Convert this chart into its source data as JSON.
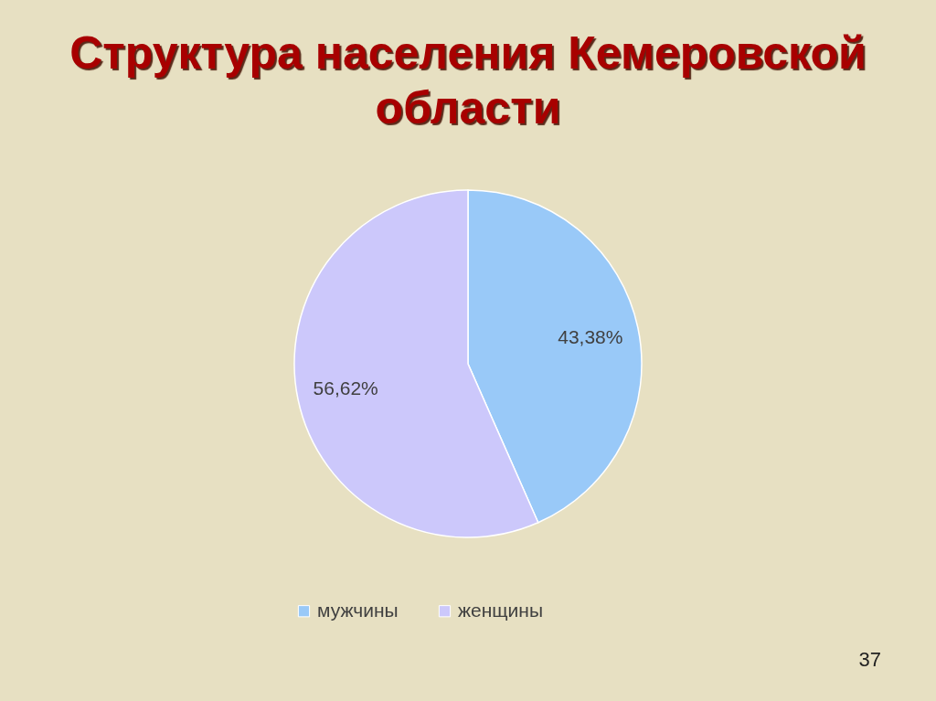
{
  "chart_data": {
    "type": "pie",
    "title": "Структура населения Кемеровской области",
    "categories": [
      "мужчины",
      "женщины"
    ],
    "values": [
      43.38,
      56.62
    ],
    "colors": [
      "#99c9f8",
      "#ccc8fb"
    ],
    "value_labels": [
      "43,38%",
      "56,62%"
    ],
    "legend": "bottom",
    "annotations": [
      "37"
    ]
  }
}
